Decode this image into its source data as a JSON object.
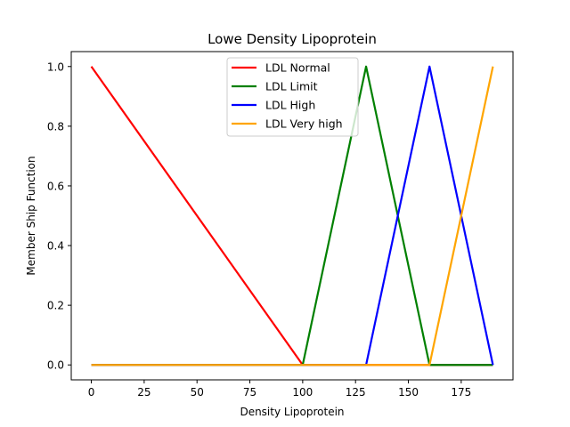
{
  "chart_data": {
    "type": "line",
    "title": "Lowe Density Lipoprotein",
    "xlabel": "Density Lipoprotein",
    "ylabel": "Member Ship Function",
    "xlim": [
      -9.5,
      199.5
    ],
    "ylim": [
      -0.05,
      1.05
    ],
    "xticks": [
      0,
      25,
      50,
      75,
      100,
      125,
      150,
      175
    ],
    "xtick_labels": [
      "0",
      "25",
      "50",
      "75",
      "100",
      "125",
      "150",
      "175"
    ],
    "yticks": [
      0.0,
      0.2,
      0.4,
      0.6,
      0.8,
      1.0
    ],
    "ytick_labels": [
      "0.0",
      "0.2",
      "0.4",
      "0.6",
      "0.8",
      "1.0"
    ],
    "grid": false,
    "legend_position": "top-center",
    "series": [
      {
        "name": "LDL Normal",
        "color": "#ff0000",
        "x": [
          0,
          100,
          190
        ],
        "y": [
          1,
          0,
          0
        ]
      },
      {
        "name": "LDL Limit",
        "color": "#008000",
        "x": [
          0,
          100,
          130,
          160,
          190
        ],
        "y": [
          0,
          0,
          1,
          0,
          0
        ]
      },
      {
        "name": "LDL High",
        "color": "#0000ff",
        "x": [
          0,
          130,
          160,
          190
        ],
        "y": [
          0,
          0,
          1,
          0
        ]
      },
      {
        "name": "LDL Very high",
        "color": "#ffa500",
        "x": [
          0,
          160,
          190
        ],
        "y": [
          0,
          0,
          1
        ]
      }
    ]
  }
}
